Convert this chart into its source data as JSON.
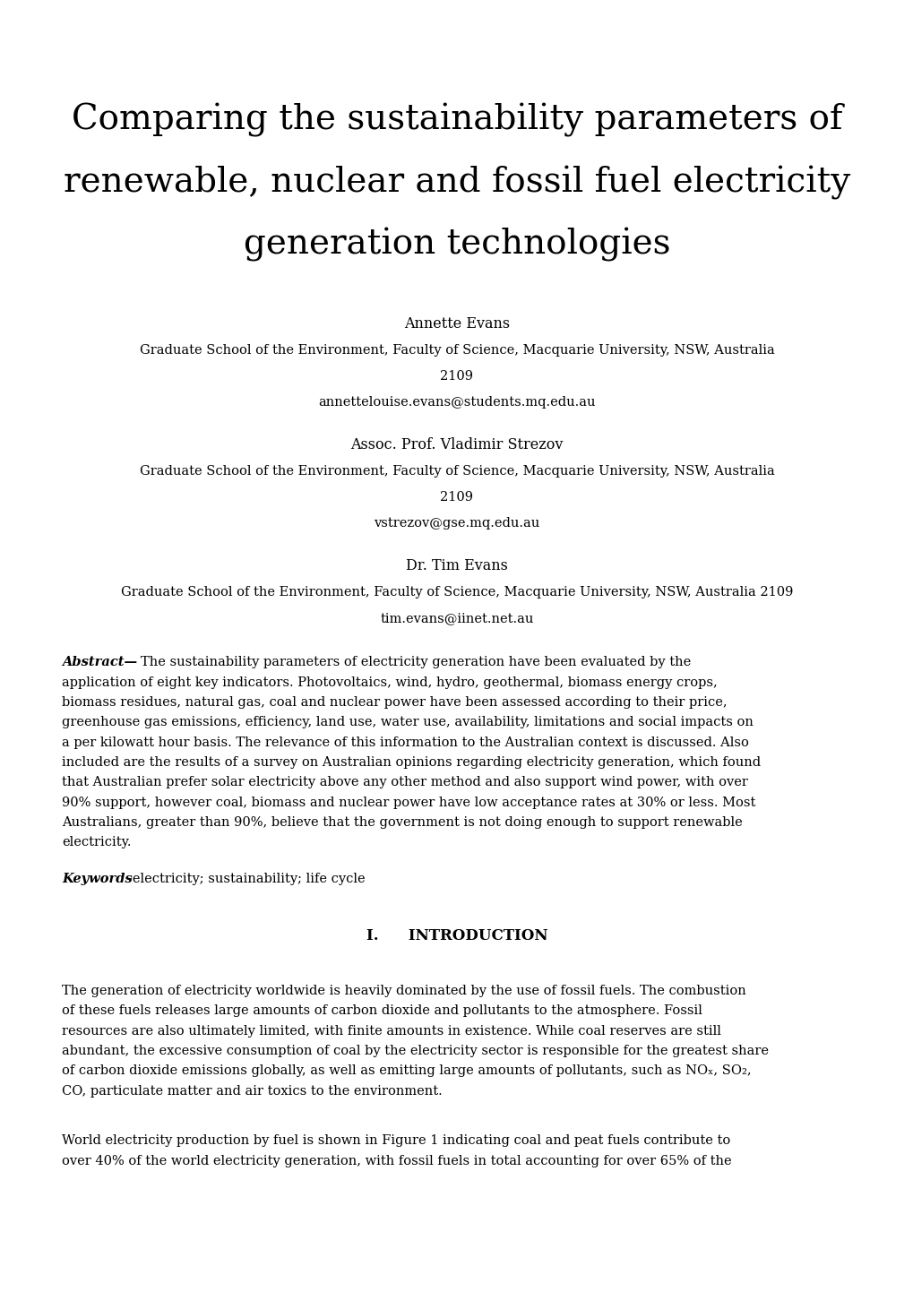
{
  "title_line1": "Comparing the sustainability parameters of",
  "title_line2": "renewable, nuclear and fossil fuel electricity",
  "title_line3": "generation technologies",
  "author1_name": "Annette Evans",
  "author1_affil1": "Graduate School of the Environment, Faculty of Science, Macquarie University, NSW, Australia",
  "author1_affil2": "2109",
  "author1_email": "annettelouise.evans@students.mq.edu.au",
  "author2_name": "Assoc. Prof. Vladimir Strezov",
  "author2_affil1": "Graduate School of the Environment, Faculty of Science, Macquarie University, NSW, Australia",
  "author2_affil2": "2109",
  "author2_email": "vstrezov@gse.mq.edu.au",
  "author3_name": "Dr. Tim Evans",
  "author3_affil1": "Graduate School of the Environment, Faculty of Science, Macquarie University, NSW, Australia 2109",
  "author3_email": "tim.evans@iinet.net.au",
  "abstract_label": "Abstract—",
  "abstract_lines": [
    "The sustainability parameters of electricity generation have been evaluated by the",
    "application of eight key indicators. Photovoltaics, wind, hydro, geothermal, biomass energy crops,",
    "biomass residues, natural gas, coal and nuclear power have been assessed according to their price,",
    "greenhouse gas emissions, efficiency, land use, water use, availability, limitations and social impacts on",
    "a per kilowatt hour basis. The relevance of this information to the Australian context is discussed. Also",
    "included are the results of a survey on Australian opinions regarding electricity generation, which found",
    "that Australian prefer solar electricity above any other method and also support wind power, with over",
    "90% support, however coal, biomass and nuclear power have low acceptance rates at 30% or less. Most",
    "Australians, greater than 90%, believe that the government is not doing enough to support renewable",
    "electricity."
  ],
  "keywords_bold": "Keywords",
  "keywords_rest": "-electricity; sustainability; life cycle",
  "section_header": "I.  Introduction",
  "intro_p1_lines": [
    "The generation of electricity worldwide is heavily dominated by the use of fossil fuels. The combustion",
    "of these fuels releases large amounts of carbon dioxide and pollutants to the atmosphere. Fossil",
    "resources are also ultimately limited, with finite amounts in existence. While coal reserves are still",
    "abundant, the excessive consumption of coal by the electricity sector is responsible for the greatest share",
    "of carbon dioxide emissions globally, as well as emitting large amounts of pollutants, such as NOₓ, SO₂,",
    "CO, particulate matter and air toxics to the environment."
  ],
  "intro_p2_lines": [
    "World electricity production by fuel is shown in Figure 1 indicating coal and peat fuels contribute to",
    "over 40% of the world electricity generation, with fossil fuels in total accounting for over 65% of the"
  ],
  "background_color": "#ffffff",
  "text_color": "#000000",
  "title_fontsize": 28,
  "author_name_fontsize": 11.5,
  "author_affil_fontsize": 10.5,
  "body_fontsize": 10.5,
  "section_fontsize": 12
}
